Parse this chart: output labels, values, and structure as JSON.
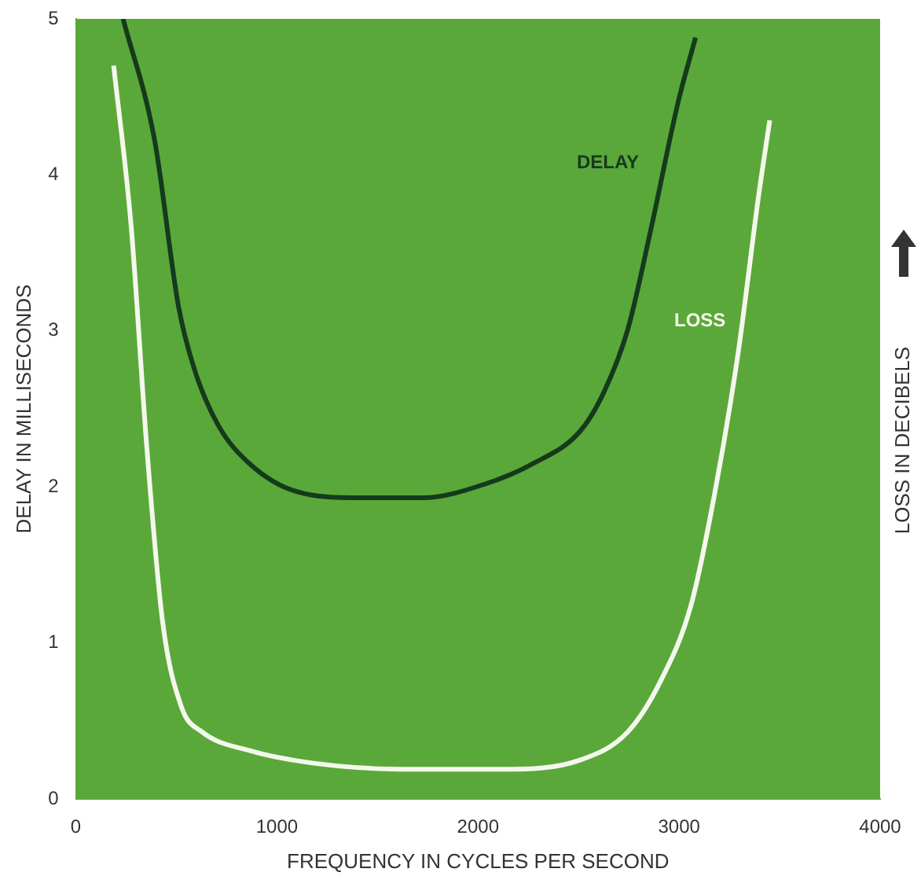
{
  "chart_data": {
    "type": "line",
    "xlabel": "FREQUENCY IN CYCLES PER SECOND",
    "ylabel": "DELAY IN MILLISECONDS",
    "y2label": "LOSS IN DECIBELS",
    "xlim": [
      0,
      4000
    ],
    "xticks": [
      0,
      1000,
      2000,
      3000,
      4000
    ],
    "ylim": [
      0,
      5
    ],
    "yticks": [
      0,
      1,
      2,
      3,
      4,
      5
    ],
    "grid": false,
    "legend": false,
    "marker": "none",
    "series": [
      {
        "name": "DELAY",
        "color": "#163a1c",
        "x": [
          235,
          392,
          510,
          588,
          706,
          863,
          1098,
          1412,
          1725,
          2039,
          2275,
          2510,
          2627,
          2745,
          2863,
          2996,
          3082
        ],
        "values": [
          5.0,
          4.22,
          3.16,
          2.76,
          2.4,
          2.15,
          1.97,
          1.93,
          1.93,
          2.02,
          2.15,
          2.36,
          2.61,
          3.01,
          3.67,
          4.47,
          4.88
        ]
      },
      {
        "name": "LOSS",
        "color": "#f4f8ec",
        "x": [
          188,
          275,
          353,
          431,
          525,
          627,
          863,
          1176,
          1647,
          2118,
          2510,
          2745,
          2902,
          3059,
          3176,
          3294,
          3396,
          3451
        ],
        "values": [
          4.7,
          3.67,
          2.25,
          1.14,
          0.59,
          0.43,
          0.31,
          0.23,
          0.19,
          0.19,
          0.25,
          0.43,
          0.74,
          1.24,
          1.95,
          2.86,
          3.87,
          4.35
        ]
      }
    ]
  }
}
